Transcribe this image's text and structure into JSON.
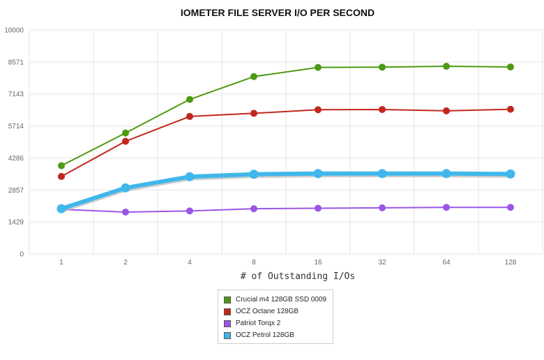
{
  "chart_data": {
    "type": "line",
    "title": "IOMETER FILE SERVER I/O PER SECOND",
    "xlabel": "# of Outstanding I/Os",
    "ylabel": "",
    "categories": [
      "1",
      "2",
      "4",
      "8",
      "16",
      "32",
      "64",
      "128"
    ],
    "yticks": [
      "0",
      "1429",
      "2857",
      "4286",
      "5714",
      "7143",
      "8571",
      "10000"
    ],
    "ylim": [
      0,
      10000
    ],
    "grid": true,
    "legend_position": "bottom-center",
    "series": [
      {
        "name": "Crucial m4 128GB SSD 0009",
        "color": "#4d9a12",
        "values": [
          3940,
          5400,
          6900,
          7920,
          8330,
          8340,
          8380,
          8350
        ]
      },
      {
        "name": "OCZ Octane 128GB",
        "color": "#c1271e",
        "values": [
          3460,
          5030,
          6140,
          6280,
          6440,
          6450,
          6390,
          6460
        ]
      },
      {
        "name": "Patriot Torqx 2",
        "color": "#9b55e6",
        "values": [
          1990,
          1870,
          1920,
          2020,
          2040,
          2060,
          2080,
          2080
        ]
      },
      {
        "name": "OCZ Petrol 128GB",
        "color": "#3fb7ea",
        "values": [
          2020,
          2950,
          3450,
          3560,
          3590,
          3590,
          3590,
          3570
        ]
      }
    ]
  }
}
